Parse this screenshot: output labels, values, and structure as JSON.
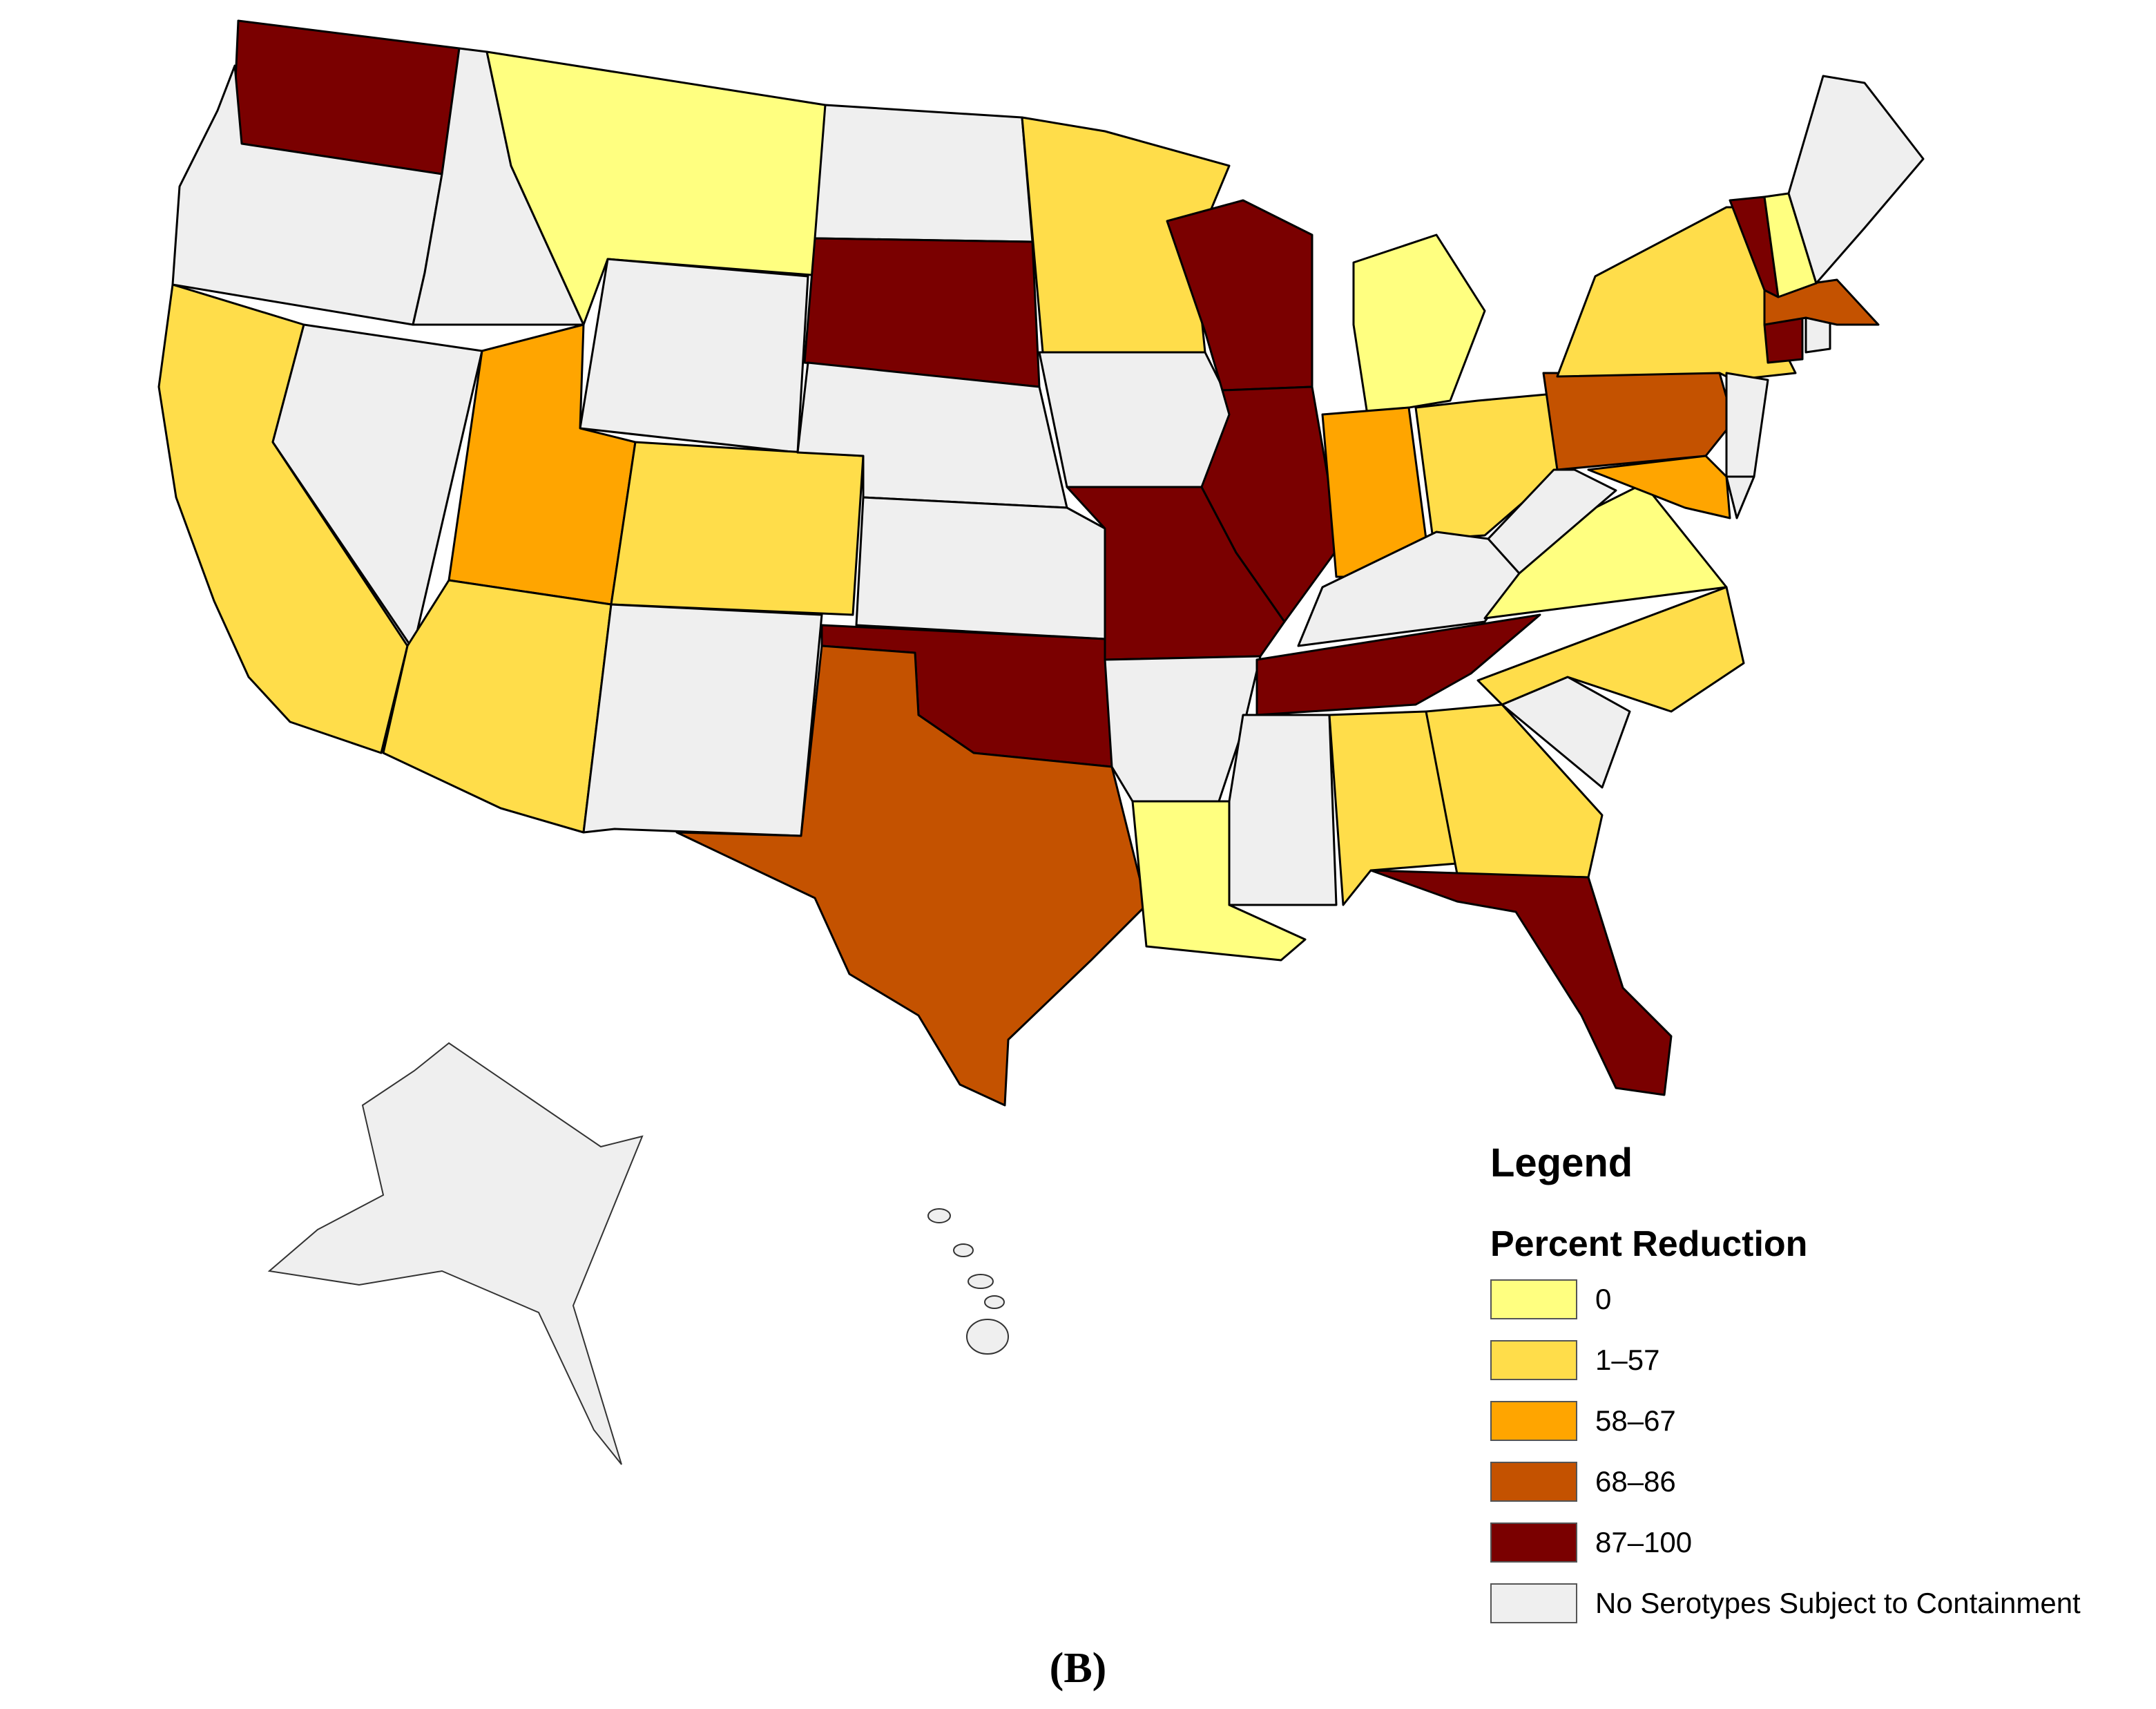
{
  "legend": {
    "title": "Legend",
    "subtitle": "Percent Reduction",
    "items": [
      {
        "label": "0",
        "color": "#FFFF80"
      },
      {
        "label": "1–57",
        "color": "#FFDD4A"
      },
      {
        "label": "58–67",
        "color": "#FFA500"
      },
      {
        "label": "68–86",
        "color": "#C45200"
      },
      {
        "label": "87–100",
        "color": "#7A0000"
      },
      {
        "label": "No Serotypes Subject to Containment",
        "color": "#EFEFEF"
      }
    ]
  },
  "panel_label": "(B)",
  "map_data": {
    "type": "choropleth",
    "region": "United States",
    "states": [
      {
        "state": "WA",
        "class": "87–100"
      },
      {
        "state": "OR",
        "class": "No Serotypes Subject to Containment"
      },
      {
        "state": "CA",
        "class": "1–57"
      },
      {
        "state": "ID",
        "class": "No Serotypes Subject to Containment"
      },
      {
        "state": "NV",
        "class": "No Serotypes Subject to Containment"
      },
      {
        "state": "MT",
        "class": "0"
      },
      {
        "state": "WY",
        "class": "No Serotypes Subject to Containment"
      },
      {
        "state": "UT",
        "class": "58–67"
      },
      {
        "state": "AZ",
        "class": "1–57"
      },
      {
        "state": "CO",
        "class": "1–57"
      },
      {
        "state": "NM",
        "class": "No Serotypes Subject to Containment"
      },
      {
        "state": "ND",
        "class": "No Serotypes Subject to Containment"
      },
      {
        "state": "SD",
        "class": "87–100"
      },
      {
        "state": "NE",
        "class": "No Serotypes Subject to Containment"
      },
      {
        "state": "KS",
        "class": "No Serotypes Subject to Containment"
      },
      {
        "state": "OK",
        "class": "87–100"
      },
      {
        "state": "TX",
        "class": "68–86"
      },
      {
        "state": "MN",
        "class": "1–57"
      },
      {
        "state": "IA",
        "class": "No Serotypes Subject to Containment"
      },
      {
        "state": "MO",
        "class": "87–100"
      },
      {
        "state": "AR",
        "class": "No Serotypes Subject to Containment"
      },
      {
        "state": "LA",
        "class": "0"
      },
      {
        "state": "WI",
        "class": "87–100"
      },
      {
        "state": "IL",
        "class": "87–100"
      },
      {
        "state": "MI",
        "class": "0"
      },
      {
        "state": "IN",
        "class": "58–67"
      },
      {
        "state": "OH",
        "class": "1–57"
      },
      {
        "state": "KY",
        "class": "No Serotypes Subject to Containment"
      },
      {
        "state": "TN",
        "class": "87–100"
      },
      {
        "state": "MS",
        "class": "No Serotypes Subject to Containment"
      },
      {
        "state": "AL",
        "class": "1–57"
      },
      {
        "state": "GA",
        "class": "1–57"
      },
      {
        "state": "FL",
        "class": "87–100"
      },
      {
        "state": "SC",
        "class": "No Serotypes Subject to Containment"
      },
      {
        "state": "NC",
        "class": "1–57"
      },
      {
        "state": "VA",
        "class": "0"
      },
      {
        "state": "WV",
        "class": "No Serotypes Subject to Containment"
      },
      {
        "state": "PA",
        "class": "68–86"
      },
      {
        "state": "NY",
        "class": "1–57"
      },
      {
        "state": "NJ",
        "class": "No Serotypes Subject to Containment"
      },
      {
        "state": "DE",
        "class": "No Serotypes Subject to Containment"
      },
      {
        "state": "MD",
        "class": "58–67"
      },
      {
        "state": "CT",
        "class": "87–100"
      },
      {
        "state": "RI",
        "class": "No Serotypes Subject to Containment"
      },
      {
        "state": "MA",
        "class": "68–86"
      },
      {
        "state": "VT",
        "class": "87–100"
      },
      {
        "state": "NH",
        "class": "0"
      },
      {
        "state": "ME",
        "class": "No Serotypes Subject to Containment"
      },
      {
        "state": "AK",
        "class": "No Serotypes Subject to Containment"
      },
      {
        "state": "HI",
        "class": "No Serotypes Subject to Containment"
      }
    ]
  }
}
